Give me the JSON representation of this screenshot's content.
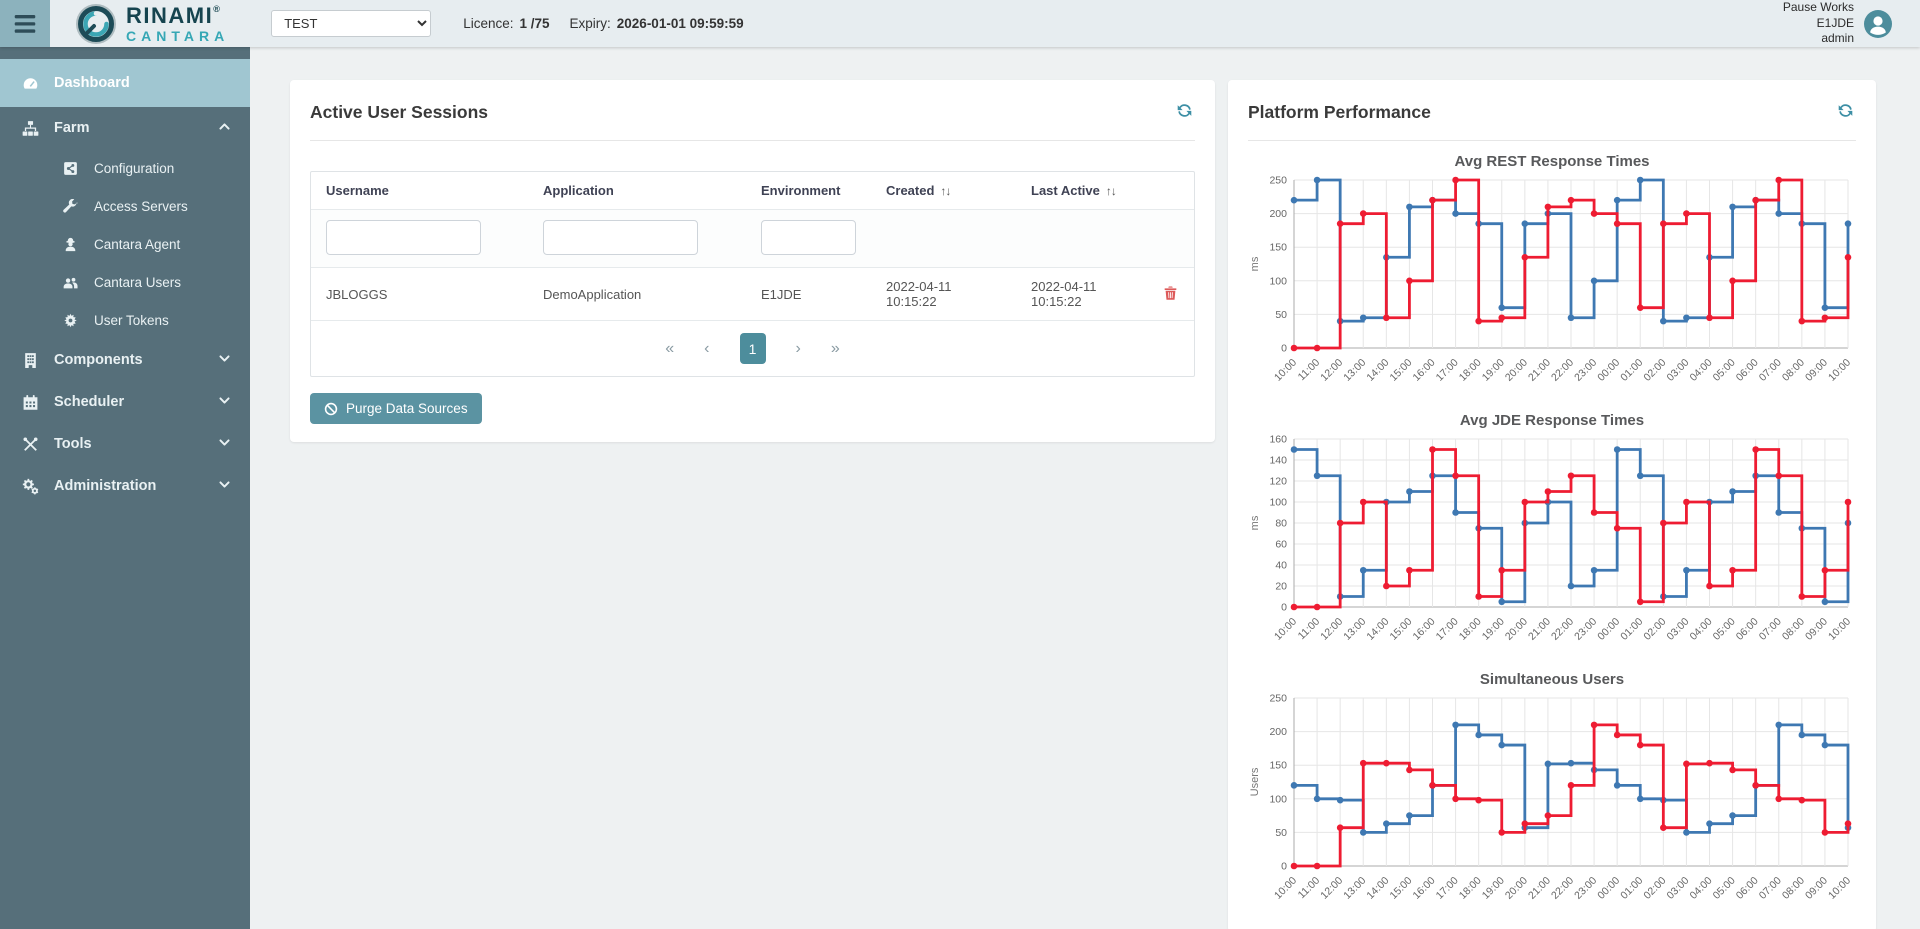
{
  "header": {
    "logo": {
      "line1": "RINAMI",
      "registered": "®",
      "line2": "CANTARA"
    },
    "environment_select": {
      "value": "TEST"
    },
    "licence_label": "Licence:",
    "licence_value": "1 /75",
    "expiry_label": "Expiry:",
    "expiry_value": "2026-01-01 09:59:59",
    "user": {
      "line1": "Pause Works",
      "line2": "E1JDE",
      "line3": "admin"
    }
  },
  "sidebar": {
    "items": [
      {
        "label": "Dashboard",
        "icon": "dashboard",
        "level": "top",
        "active": true
      },
      {
        "label": "Farm",
        "icon": "sitemap",
        "level": "top",
        "chevron": "up"
      },
      {
        "label": "Configuration",
        "icon": "share",
        "level": "sub"
      },
      {
        "label": "Access Servers",
        "icon": "wrench",
        "level": "sub"
      },
      {
        "label": "Cantara Agent",
        "icon": "agent",
        "level": "sub"
      },
      {
        "label": "Cantara Users",
        "icon": "users",
        "level": "sub"
      },
      {
        "label": "User Tokens",
        "icon": "token",
        "level": "sub"
      },
      {
        "label": "Components",
        "icon": "building",
        "level": "top",
        "chevron": "down"
      },
      {
        "label": "Scheduler",
        "icon": "calendar",
        "level": "top",
        "chevron": "down"
      },
      {
        "label": "Tools",
        "icon": "tools",
        "level": "top",
        "chevron": "down"
      },
      {
        "label": "Administration",
        "icon": "cogs",
        "level": "top",
        "chevron": "down"
      }
    ]
  },
  "sessions_panel": {
    "title": "Active User Sessions",
    "columns": [
      "Username",
      "Application",
      "Environment",
      "Created",
      "Last Active",
      ""
    ],
    "sortable_columns": [
      "Created",
      "Last Active"
    ],
    "sort_icon": "↑↓",
    "filters": [
      {
        "column": "Username",
        "value": "",
        "placeholder": ""
      },
      {
        "column": "Application",
        "value": "",
        "placeholder": ""
      },
      {
        "column": "Environment",
        "value": "",
        "placeholder": ""
      }
    ],
    "rows": [
      {
        "username": "JBLOGGS",
        "application": "DemoApplication",
        "environment": "E1JDE",
        "created": "2022-04-11 10:15:22",
        "last_active": "2022-04-11 10:15:22"
      }
    ],
    "pagination": {
      "first": "«",
      "prev": "‹",
      "pages": [
        "1"
      ],
      "current": "1",
      "next": "›",
      "last": "»"
    },
    "purge_button_label": "Purge Data Sources"
  },
  "performance_panel": {
    "title": "Platform Performance"
  },
  "chart_data": [
    {
      "type": "line",
      "stepped": true,
      "title": "Avg REST Response Times",
      "ylabel": "ms",
      "ylim": [
        0,
        250
      ],
      "ytick": 50,
      "grid": true,
      "legend": "none",
      "categories": [
        "10:00",
        "11:00",
        "12:00",
        "13:00",
        "14:00",
        "15:00",
        "16:00",
        "17:00",
        "18:00",
        "19:00",
        "20:00",
        "21:00",
        "22:00",
        "23:00",
        "00:00",
        "01:00",
        "02:00",
        "03:00",
        "04:00",
        "05:00",
        "06:00",
        "07:00",
        "08:00",
        "09:00",
        "10:00"
      ],
      "series": [
        {
          "name": "blue",
          "color": "#3e78b2",
          "values": [
            220,
            250,
            40,
            45,
            135,
            210,
            220,
            200,
            185,
            60,
            185,
            200,
            45,
            100,
            220,
            250,
            40,
            45,
            135,
            210,
            220,
            200,
            185,
            60,
            185
          ]
        },
        {
          "name": "red",
          "color": "#ee1c32",
          "values": [
            0,
            0,
            185,
            200,
            45,
            100,
            220,
            250,
            40,
            45,
            135,
            210,
            220,
            200,
            185,
            60,
            185,
            200,
            45,
            100,
            220,
            250,
            40,
            45,
            135
          ]
        }
      ]
    },
    {
      "type": "line",
      "stepped": true,
      "title": "Avg JDE Response Times",
      "ylabel": "ms",
      "ylim": [
        0,
        160
      ],
      "ytick": 20,
      "grid": true,
      "legend": "none",
      "categories": [
        "10:00",
        "11:00",
        "12:00",
        "13:00",
        "14:00",
        "15:00",
        "16:00",
        "17:00",
        "18:00",
        "19:00",
        "20:00",
        "21:00",
        "22:00",
        "23:00",
        "00:00",
        "01:00",
        "02:00",
        "03:00",
        "04:00",
        "05:00",
        "06:00",
        "07:00",
        "08:00",
        "09:00",
        "10:00"
      ],
      "series": [
        {
          "name": "blue",
          "color": "#3e78b2",
          "values": [
            150,
            125,
            10,
            35,
            100,
            110,
            125,
            90,
            75,
            5,
            80,
            100,
            20,
            35,
            150,
            125,
            10,
            35,
            100,
            110,
            125,
            90,
            75,
            5,
            80
          ]
        },
        {
          "name": "red",
          "color": "#ee1c32",
          "values": [
            0,
            0,
            80,
            100,
            20,
            35,
            150,
            125,
            10,
            35,
            100,
            110,
            125,
            90,
            75,
            5,
            80,
            100,
            20,
            35,
            150,
            125,
            10,
            35,
            100
          ]
        }
      ]
    },
    {
      "type": "line",
      "stepped": true,
      "title": "Simultaneous Users",
      "ylabel": "Users",
      "ylim": [
        0,
        250
      ],
      "ytick": 50,
      "grid": true,
      "legend": "none",
      "categories": [
        "10:00",
        "11:00",
        "12:00",
        "13:00",
        "14:00",
        "15:00",
        "16:00",
        "17:00",
        "18:00",
        "19:00",
        "20:00",
        "21:00",
        "22:00",
        "23:00",
        "00:00",
        "01:00",
        "02:00",
        "03:00",
        "04:00",
        "05:00",
        "06:00",
        "07:00",
        "08:00",
        "09:00",
        "10:00"
      ],
      "series": [
        {
          "name": "blue",
          "color": "#3e78b2",
          "values": [
            120,
            100,
            98,
            50,
            63,
            75,
            120,
            210,
            195,
            180,
            57,
            152,
            153,
            143,
            120,
            100,
            98,
            50,
            63,
            75,
            120,
            210,
            195,
            180,
            57
          ]
        },
        {
          "name": "red",
          "color": "#ee1c32",
          "values": [
            0,
            0,
            57,
            153,
            153,
            143,
            120,
            100,
            98,
            50,
            63,
            75,
            120,
            210,
            195,
            180,
            57,
            152,
            153,
            143,
            120,
            100,
            98,
            50,
            63
          ]
        }
      ]
    }
  ],
  "colors": {
    "accent_teal": "#4d8d9c",
    "sidebar_bg": "#566f7a",
    "sidebar_active_bg": "#a0c6d1",
    "header_bg": "#e7edf0",
    "danger_red": "#dd5a5a",
    "chart_blue": "#3e78b2",
    "chart_red": "#ee1c32"
  }
}
